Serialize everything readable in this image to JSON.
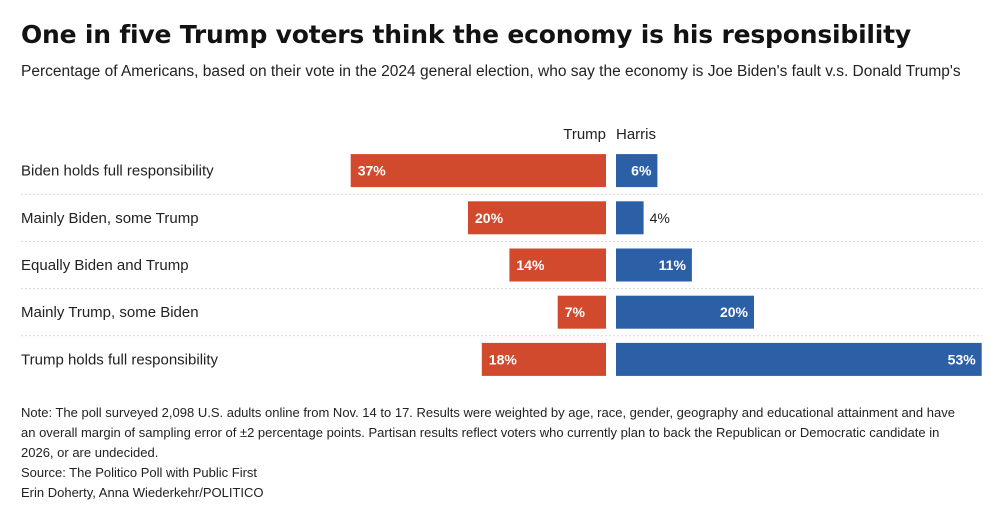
{
  "header": {
    "title": "One in five Trump voters think the economy is his responsibility",
    "subtitle": "Percentage of Americans, based on their vote in the 2024 general election, who say the economy is Joe Biden's fault v.s. Donald Trump's"
  },
  "chart_data": {
    "type": "bar",
    "orientation": "horizontal-diverging",
    "title": "One in five Trump voters think the economy is his responsibility",
    "subtitle": "Percentage of Americans, based on their vote in the 2024 general election, who say the economy is Joe Biden's fault v.s. Donald Trump's",
    "categories": [
      "Biden holds full responsibility",
      "Mainly Biden, some Trump",
      "Equally Biden and Trump",
      "Mainly Trump, some Biden",
      "Trump holds full responsibility"
    ],
    "series": [
      {
        "name": "Trump",
        "values": [
          37,
          20,
          14,
          7,
          18
        ],
        "color": "#d24a2e",
        "side": "left"
      },
      {
        "name": "Harris",
        "values": [
          6,
          4,
          11,
          20,
          53
        ],
        "color": "#2b5fa6",
        "side": "right"
      }
    ],
    "value_suffix": "%",
    "grid": false
  },
  "footer": {
    "note": "Note: The poll surveyed 2,098 U.S. adults online from Nov. 14 to 17. Results were weighted by age, race, gender, geography and educational attainment and have an overall margin of sampling error of ±2 percentage points. Partisan results reflect voters who currently plan to back the Republican or Democratic candidate in 2026, or are undecided.",
    "source": "Source: The Politico Poll with Public First",
    "credit": "Erin Doherty, Anna Wiederkehr/POLITICO"
  }
}
